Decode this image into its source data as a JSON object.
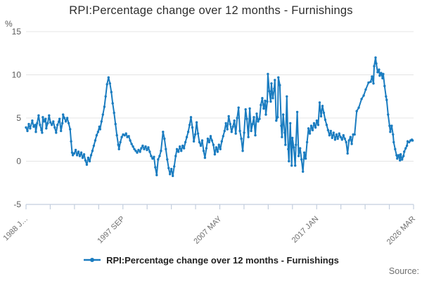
{
  "page": {
    "source_label": "Source:"
  },
  "colors": {
    "line": "#1a7cc0",
    "grid": "#e4e4e4",
    "axis": "#c3cede",
    "title_text": "#2e2e2e",
    "y_label_text": "#5a5a5a",
    "x_label_text": "#6e6e6e",
    "legend_text": "#222222",
    "source_text": "#6e6e6e"
  },
  "chart_data": {
    "type": "line",
    "title": "RPI:Percentage change over 12 months - Furnishings",
    "unit_label": "%",
    "ylim": [
      -5,
      15
    ],
    "yticks": [
      15,
      10,
      5,
      0,
      -5
    ],
    "xlim": [
      1988.0,
      2026.25
    ],
    "grid": true,
    "legend_position": "bottom",
    "x_axis": {
      "tick_count": 17,
      "labeled_ticks": [
        0,
        4,
        8,
        12,
        16
      ],
      "labels": [
        "1988 J…",
        "1997 SEP",
        "2007 MAY",
        "2017 JAN",
        "2026 MAR"
      ]
    },
    "series": [
      {
        "name": "RPI:Percentage change over 12 months - Furnishings",
        "color": "#1a7cc0",
        "points": [
          [
            1988.0,
            3.9
          ],
          [
            1988.14,
            3.5
          ],
          [
            1988.28,
            4.3
          ],
          [
            1988.41,
            3.8
          ],
          [
            1988.62,
            4.7
          ],
          [
            1988.76,
            4.0
          ],
          [
            1988.9,
            4.2
          ],
          [
            1988.97,
            3.4
          ],
          [
            1989.1,
            4.4
          ],
          [
            1989.24,
            5.3
          ],
          [
            1989.38,
            4.2
          ],
          [
            1989.52,
            3.6
          ],
          [
            1989.59,
            3.3
          ],
          [
            1989.66,
            5.1
          ],
          [
            1989.79,
            4.6
          ],
          [
            1989.93,
            4.9
          ],
          [
            1990.0,
            3.8
          ],
          [
            1990.14,
            4.4
          ],
          [
            1990.28,
            5.3
          ],
          [
            1990.41,
            4.5
          ],
          [
            1990.55,
            4.2
          ],
          [
            1990.69,
            4.6
          ],
          [
            1990.83,
            3.9
          ],
          [
            1990.97,
            3.3
          ],
          [
            1991.1,
            4.2
          ],
          [
            1991.24,
            4.6
          ],
          [
            1991.31,
            4.9
          ],
          [
            1991.45,
            3.5
          ],
          [
            1991.59,
            4.4
          ],
          [
            1991.66,
            5.4
          ],
          [
            1991.79,
            5.0
          ],
          [
            1991.93,
            4.6
          ],
          [
            1992.07,
            5.0
          ],
          [
            1992.21,
            4.4
          ],
          [
            1992.35,
            3.7
          ],
          [
            1992.45,
            2.3
          ],
          [
            1992.55,
            1.0
          ],
          [
            1992.62,
            0.7
          ],
          [
            1992.76,
            0.9
          ],
          [
            1992.9,
            1.3
          ],
          [
            1993.04,
            0.7
          ],
          [
            1993.17,
            1.1
          ],
          [
            1993.31,
            0.6
          ],
          [
            1993.45,
            1.0
          ],
          [
            1993.59,
            0.4
          ],
          [
            1993.73,
            0.8
          ],
          [
            1993.86,
            0.1
          ],
          [
            1994.0,
            -0.4
          ],
          [
            1994.14,
            0.4
          ],
          [
            1994.28,
            0.0
          ],
          [
            1994.42,
            0.7
          ],
          [
            1994.55,
            1.2
          ],
          [
            1994.69,
            1.8
          ],
          [
            1994.83,
            2.4
          ],
          [
            1994.97,
            3.0
          ],
          [
            1995.11,
            3.4
          ],
          [
            1995.24,
            4.0
          ],
          [
            1995.31,
            3.7
          ],
          [
            1995.45,
            4.6
          ],
          [
            1995.59,
            5.4
          ],
          [
            1995.73,
            6.3
          ],
          [
            1995.86,
            7.5
          ],
          [
            1996.0,
            8.9
          ],
          [
            1996.14,
            9.7
          ],
          [
            1996.28,
            9.0
          ],
          [
            1996.42,
            8.0
          ],
          [
            1996.55,
            6.7
          ],
          [
            1996.69,
            5.6
          ],
          [
            1996.83,
            4.3
          ],
          [
            1996.97,
            3.0
          ],
          [
            1997.11,
            1.9
          ],
          [
            1997.18,
            1.4
          ],
          [
            1997.31,
            2.2
          ],
          [
            1997.45,
            2.8
          ],
          [
            1997.59,
            3.1
          ],
          [
            1997.73,
            3.0
          ],
          [
            1997.87,
            3.2
          ],
          [
            1998.0,
            2.8
          ],
          [
            1998.14,
            2.9
          ],
          [
            1998.28,
            2.4
          ],
          [
            1998.42,
            2.0
          ],
          [
            1998.56,
            1.7
          ],
          [
            1998.69,
            1.4
          ],
          [
            1998.83,
            1.2
          ],
          [
            1998.97,
            1.0
          ],
          [
            1999.11,
            1.3
          ],
          [
            1999.25,
            1.1
          ],
          [
            1999.38,
            1.5
          ],
          [
            1999.52,
            1.8
          ],
          [
            1999.66,
            1.4
          ],
          [
            1999.8,
            1.7
          ],
          [
            1999.94,
            1.3
          ],
          [
            2000.07,
            1.6
          ],
          [
            2000.21,
            1.1
          ],
          [
            2000.35,
            0.6
          ],
          [
            2000.49,
            0.3
          ],
          [
            2000.63,
            0.5
          ],
          [
            2000.76,
            -0.7
          ],
          [
            2000.9,
            -1.6
          ],
          [
            2001.04,
            0.2
          ],
          [
            2001.18,
            0.6
          ],
          [
            2001.32,
            1.2
          ],
          [
            2001.52,
            3.4
          ],
          [
            2001.66,
            2.6
          ],
          [
            2001.8,
            1.4
          ],
          [
            2001.94,
            0.2
          ],
          [
            2002.08,
            -0.8
          ],
          [
            2002.21,
            -1.5
          ],
          [
            2002.35,
            -0.9
          ],
          [
            2002.49,
            -1.7
          ],
          [
            2002.63,
            -0.6
          ],
          [
            2002.77,
            0.6
          ],
          [
            2002.9,
            1.4
          ],
          [
            2003.04,
            1.1
          ],
          [
            2003.18,
            1.7
          ],
          [
            2003.32,
            1.2
          ],
          [
            2003.46,
            1.8
          ],
          [
            2003.59,
            1.5
          ],
          [
            2003.73,
            2.2
          ],
          [
            2003.87,
            2.8
          ],
          [
            2004.01,
            3.4
          ],
          [
            2004.15,
            4.2
          ],
          [
            2004.28,
            5.1
          ],
          [
            2004.42,
            3.9
          ],
          [
            2004.56,
            2.3
          ],
          [
            2004.7,
            3.1
          ],
          [
            2004.84,
            4.5
          ],
          [
            2004.97,
            3.2
          ],
          [
            2005.11,
            2.2
          ],
          [
            2005.25,
            1.8
          ],
          [
            2005.39,
            2.4
          ],
          [
            2005.53,
            1.2
          ],
          [
            2005.66,
            0.4
          ],
          [
            2005.8,
            1.5
          ],
          [
            2005.94,
            2.6
          ],
          [
            2006.08,
            2.2
          ],
          [
            2006.22,
            2.9
          ],
          [
            2006.35,
            2.4
          ],
          [
            2006.49,
            1.9
          ],
          [
            2006.63,
            0.8
          ],
          [
            2006.77,
            1.6
          ],
          [
            2006.91,
            1.1
          ],
          [
            2007.04,
            1.9
          ],
          [
            2007.18,
            1.4
          ],
          [
            2007.32,
            2.3
          ],
          [
            2007.46,
            2.9
          ],
          [
            2007.6,
            3.5
          ],
          [
            2007.73,
            4.4
          ],
          [
            2007.87,
            3.7
          ],
          [
            2008.01,
            5.2
          ],
          [
            2008.15,
            4.3
          ],
          [
            2008.29,
            3.4
          ],
          [
            2008.42,
            4.0
          ],
          [
            2008.56,
            4.7
          ],
          [
            2008.7,
            3.2
          ],
          [
            2008.84,
            5.0
          ],
          [
            2008.98,
            6.2
          ],
          [
            2009.11,
            3.5
          ],
          [
            2009.25,
            2.6
          ],
          [
            2009.39,
            1.2
          ],
          [
            2009.53,
            3.3
          ],
          [
            2009.67,
            6.0
          ],
          [
            2009.8,
            4.9
          ],
          [
            2009.94,
            2.8
          ],
          [
            2010.08,
            6.1
          ],
          [
            2010.22,
            3.5
          ],
          [
            2010.36,
            4.3
          ],
          [
            2010.49,
            5.1
          ],
          [
            2010.63,
            3.0
          ],
          [
            2010.77,
            5.5
          ],
          [
            2010.91,
            4.6
          ],
          [
            2011.05,
            4.9
          ],
          [
            2011.18,
            6.5
          ],
          [
            2011.32,
            7.3
          ],
          [
            2011.46,
            6.1
          ],
          [
            2011.6,
            7.0
          ],
          [
            2011.67,
            5.4
          ],
          [
            2011.81,
            6.9
          ],
          [
            2011.87,
            10.1
          ],
          [
            2012.01,
            8.1
          ],
          [
            2012.15,
            6.9
          ],
          [
            2012.22,
            9.0
          ],
          [
            2012.36,
            7.3
          ],
          [
            2012.5,
            8.4
          ],
          [
            2012.56,
            9.4
          ],
          [
            2012.7,
            4.7
          ],
          [
            2012.84,
            5.1
          ],
          [
            2012.91,
            9.7
          ],
          [
            2013.05,
            8.8
          ],
          [
            2013.19,
            4.1
          ],
          [
            2013.26,
            2.8
          ],
          [
            2013.39,
            5.4
          ],
          [
            2013.53,
            3.3
          ],
          [
            2013.6,
            1.9
          ],
          [
            2013.74,
            7.5
          ],
          [
            2013.88,
            1.4
          ],
          [
            2013.95,
            0.0
          ],
          [
            2014.08,
            4.4
          ],
          [
            2014.22,
            -0.5
          ],
          [
            2014.29,
            2.7
          ],
          [
            2014.43,
            1.6
          ],
          [
            2014.57,
            -0.5
          ],
          [
            2014.64,
            1.9
          ],
          [
            2014.77,
            5.7
          ],
          [
            2014.91,
            0.6
          ],
          [
            2015.05,
            1.5
          ],
          [
            2015.19,
            0.2
          ],
          [
            2015.33,
            -1.2
          ],
          [
            2015.46,
            1.0
          ],
          [
            2015.6,
            0.3
          ],
          [
            2015.74,
            2.2
          ],
          [
            2015.88,
            3.8
          ],
          [
            2016.01,
            3.2
          ],
          [
            2016.15,
            4.1
          ],
          [
            2016.29,
            3.6
          ],
          [
            2016.43,
            4.4
          ],
          [
            2016.57,
            3.9
          ],
          [
            2016.7,
            4.7
          ],
          [
            2016.84,
            4.2
          ],
          [
            2016.98,
            6.8
          ],
          [
            2017.12,
            5.2
          ],
          [
            2017.26,
            6.4
          ],
          [
            2017.39,
            5.6
          ],
          [
            2017.53,
            4.8
          ],
          [
            2017.67,
            4.2
          ],
          [
            2017.81,
            3.6
          ],
          [
            2017.95,
            3.0
          ],
          [
            2018.08,
            3.5
          ],
          [
            2018.22,
            2.7
          ],
          [
            2018.36,
            3.3
          ],
          [
            2018.5,
            2.5
          ],
          [
            2018.64,
            3.1
          ],
          [
            2018.77,
            2.6
          ],
          [
            2018.91,
            3.2
          ],
          [
            2019.05,
            2.8
          ],
          [
            2019.19,
            2.5
          ],
          [
            2019.33,
            3.0
          ],
          [
            2019.46,
            2.6
          ],
          [
            2019.6,
            2.2
          ],
          [
            2019.74,
            0.9
          ],
          [
            2019.88,
            2.4
          ],
          [
            2020.02,
            2.8
          ],
          [
            2020.15,
            2.0
          ],
          [
            2020.29,
            3.1
          ],
          [
            2020.43,
            3.1
          ],
          [
            2020.64,
            5.8
          ],
          [
            2020.84,
            6.2
          ],
          [
            2021.12,
            7.2
          ],
          [
            2021.33,
            7.6
          ],
          [
            2021.53,
            8.3
          ],
          [
            2021.81,
            9.1
          ],
          [
            2022.02,
            9.2
          ],
          [
            2022.15,
            9.8
          ],
          [
            2022.29,
            9.0
          ],
          [
            2022.36,
            11.0
          ],
          [
            2022.5,
            12.0
          ],
          [
            2022.57,
            11.3
          ],
          [
            2022.7,
            10.3
          ],
          [
            2022.84,
            10.6
          ],
          [
            2022.91,
            9.9
          ],
          [
            2023.05,
            10.2
          ],
          [
            2023.19,
            9.6
          ],
          [
            2023.26,
            10.1
          ],
          [
            2023.39,
            8.7
          ],
          [
            2023.53,
            7.5
          ],
          [
            2023.6,
            7.1
          ],
          [
            2023.74,
            5.4
          ],
          [
            2023.88,
            4.1
          ],
          [
            2023.95,
            3.4
          ],
          [
            2024.09,
            4.1
          ],
          [
            2024.22,
            3.1
          ],
          [
            2024.29,
            2.2
          ],
          [
            2024.43,
            1.4
          ],
          [
            2024.57,
            0.7
          ],
          [
            2024.64,
            0.3
          ],
          [
            2024.78,
            0.7
          ],
          [
            2024.91,
            0.1
          ],
          [
            2024.98,
            0.8
          ],
          [
            2025.12,
            0.2
          ],
          [
            2025.26,
            0.6
          ],
          [
            2025.33,
            1.1
          ],
          [
            2025.47,
            1.5
          ],
          [
            2025.6,
            1.8
          ],
          [
            2025.67,
            2.3
          ],
          [
            2025.81,
            2.2
          ],
          [
            2025.95,
            2.4
          ],
          [
            2026.08,
            2.5
          ],
          [
            2026.15,
            2.4
          ]
        ]
      }
    ]
  }
}
